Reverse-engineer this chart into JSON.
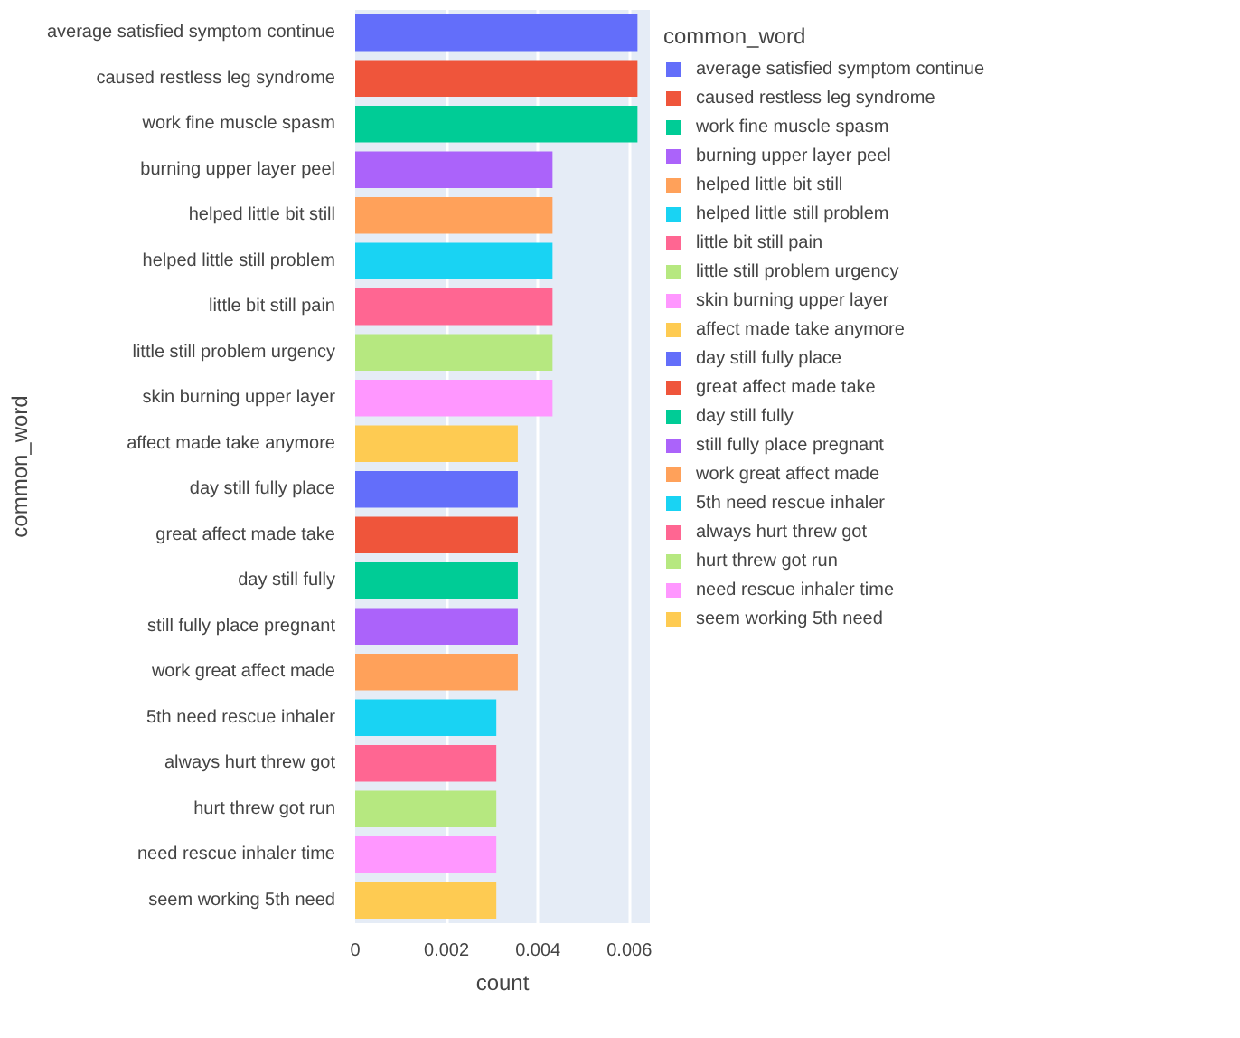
{
  "chart_data": {
    "type": "bar",
    "orientation": "horizontal",
    "xlabel": "count",
    "ylabel": "common_word",
    "legend_title": "common_word",
    "legend": "right",
    "grid": "x",
    "categories": [
      "average satisfied symptom continue",
      "caused restless leg syndrome",
      "work fine muscle spasm",
      "burning upper layer peel",
      "helped little bit still",
      "helped little still problem",
      "little bit still pain",
      "little still problem urgency",
      "skin burning upper layer",
      "affect made take anymore",
      "day still fully place",
      "great affect made take",
      "day still fully",
      "still fully place pregnant",
      "work great affect made",
      "5th need rescue inhaler",
      "always hurt threw got",
      "hurt threw got run",
      "need rescue inhaler time",
      "seem working 5th need"
    ],
    "series": [
      {
        "name": "average satisfied symptom continue",
        "color": "#636efa",
        "values": [
          0.00618,
          null,
          null,
          null,
          null,
          null,
          null,
          null,
          null,
          null,
          null,
          null,
          null,
          null,
          null,
          null,
          null,
          null,
          null,
          null
        ]
      },
      {
        "name": "caused restless leg syndrome",
        "color": "#ef553b",
        "values": [
          null,
          0.00618,
          null,
          null,
          null,
          null,
          null,
          null,
          null,
          null,
          null,
          null,
          null,
          null,
          null,
          null,
          null,
          null,
          null,
          null
        ]
      },
      {
        "name": "work fine muscle spasm",
        "color": "#00cc96",
        "values": [
          null,
          null,
          0.00618,
          null,
          null,
          null,
          null,
          null,
          null,
          null,
          null,
          null,
          null,
          null,
          null,
          null,
          null,
          null,
          null,
          null
        ]
      },
      {
        "name": "burning upper layer peel",
        "color": "#ab63fa",
        "values": [
          null,
          null,
          null,
          0.00432,
          null,
          null,
          null,
          null,
          null,
          null,
          null,
          null,
          null,
          null,
          null,
          null,
          null,
          null,
          null,
          null
        ]
      },
      {
        "name": "helped little bit still",
        "color": "#ffa15a",
        "values": [
          null,
          null,
          null,
          null,
          0.00432,
          null,
          null,
          null,
          null,
          null,
          null,
          null,
          null,
          null,
          null,
          null,
          null,
          null,
          null,
          null
        ]
      },
      {
        "name": "helped little still problem",
        "color": "#19d3f3",
        "values": [
          null,
          null,
          null,
          null,
          null,
          0.00432,
          null,
          null,
          null,
          null,
          null,
          null,
          null,
          null,
          null,
          null,
          null,
          null,
          null,
          null
        ]
      },
      {
        "name": "little bit still pain",
        "color": "#ff6692",
        "values": [
          null,
          null,
          null,
          null,
          null,
          null,
          0.00432,
          null,
          null,
          null,
          null,
          null,
          null,
          null,
          null,
          null,
          null,
          null,
          null,
          null
        ]
      },
      {
        "name": "little still problem urgency",
        "color": "#b6e880",
        "values": [
          null,
          null,
          null,
          null,
          null,
          null,
          null,
          0.00432,
          null,
          null,
          null,
          null,
          null,
          null,
          null,
          null,
          null,
          null,
          null,
          null
        ]
      },
      {
        "name": "skin burning upper layer",
        "color": "#ff97ff",
        "values": [
          null,
          null,
          null,
          null,
          null,
          null,
          null,
          null,
          0.00432,
          null,
          null,
          null,
          null,
          null,
          null,
          null,
          null,
          null,
          null,
          null
        ]
      },
      {
        "name": "affect made take anymore",
        "color": "#fecb52",
        "values": [
          null,
          null,
          null,
          null,
          null,
          null,
          null,
          null,
          null,
          0.00356,
          null,
          null,
          null,
          null,
          null,
          null,
          null,
          null,
          null,
          null
        ]
      },
      {
        "name": "day still fully place",
        "color": "#636efa",
        "values": [
          null,
          null,
          null,
          null,
          null,
          null,
          null,
          null,
          null,
          null,
          0.00356,
          null,
          null,
          null,
          null,
          null,
          null,
          null,
          null,
          null
        ]
      },
      {
        "name": "great affect made take",
        "color": "#ef553b",
        "values": [
          null,
          null,
          null,
          null,
          null,
          null,
          null,
          null,
          null,
          null,
          null,
          0.00356,
          null,
          null,
          null,
          null,
          null,
          null,
          null,
          null
        ]
      },
      {
        "name": "day still fully",
        "color": "#00cc96",
        "values": [
          null,
          null,
          null,
          null,
          null,
          null,
          null,
          null,
          null,
          null,
          null,
          null,
          0.00356,
          null,
          null,
          null,
          null,
          null,
          null,
          null
        ]
      },
      {
        "name": "still fully place pregnant",
        "color": "#ab63fa",
        "values": [
          null,
          null,
          null,
          null,
          null,
          null,
          null,
          null,
          null,
          null,
          null,
          null,
          null,
          0.00356,
          null,
          null,
          null,
          null,
          null,
          null
        ]
      },
      {
        "name": "work great affect made",
        "color": "#ffa15a",
        "values": [
          null,
          null,
          null,
          null,
          null,
          null,
          null,
          null,
          null,
          null,
          null,
          null,
          null,
          null,
          0.00356,
          null,
          null,
          null,
          null,
          null
        ]
      },
      {
        "name": "5th need rescue inhaler",
        "color": "#19d3f3",
        "values": [
          null,
          null,
          null,
          null,
          null,
          null,
          null,
          null,
          null,
          null,
          null,
          null,
          null,
          null,
          null,
          0.00309,
          null,
          null,
          null,
          null
        ]
      },
      {
        "name": "always hurt threw got",
        "color": "#ff6692",
        "values": [
          null,
          null,
          null,
          null,
          null,
          null,
          null,
          null,
          null,
          null,
          null,
          null,
          null,
          null,
          null,
          null,
          0.00309,
          null,
          null,
          null
        ]
      },
      {
        "name": "hurt threw got run",
        "color": "#b6e880",
        "values": [
          null,
          null,
          null,
          null,
          null,
          null,
          null,
          null,
          null,
          null,
          null,
          null,
          null,
          null,
          null,
          null,
          null,
          0.00309,
          null,
          null
        ]
      },
      {
        "name": "need rescue inhaler time",
        "color": "#ff97ff",
        "values": [
          null,
          null,
          null,
          null,
          null,
          null,
          null,
          null,
          null,
          null,
          null,
          null,
          null,
          null,
          null,
          null,
          null,
          null,
          0.00309,
          null
        ]
      },
      {
        "name": "seem working 5th need",
        "color": "#fecb52",
        "values": [
          null,
          null,
          null,
          null,
          null,
          null,
          null,
          null,
          null,
          null,
          null,
          null,
          null,
          null,
          null,
          null,
          null,
          null,
          null,
          0.00309
        ]
      }
    ],
    "xlim": [
      0,
      0.00645
    ],
    "xticks": [
      0,
      0.002,
      0.004,
      0.006
    ]
  }
}
